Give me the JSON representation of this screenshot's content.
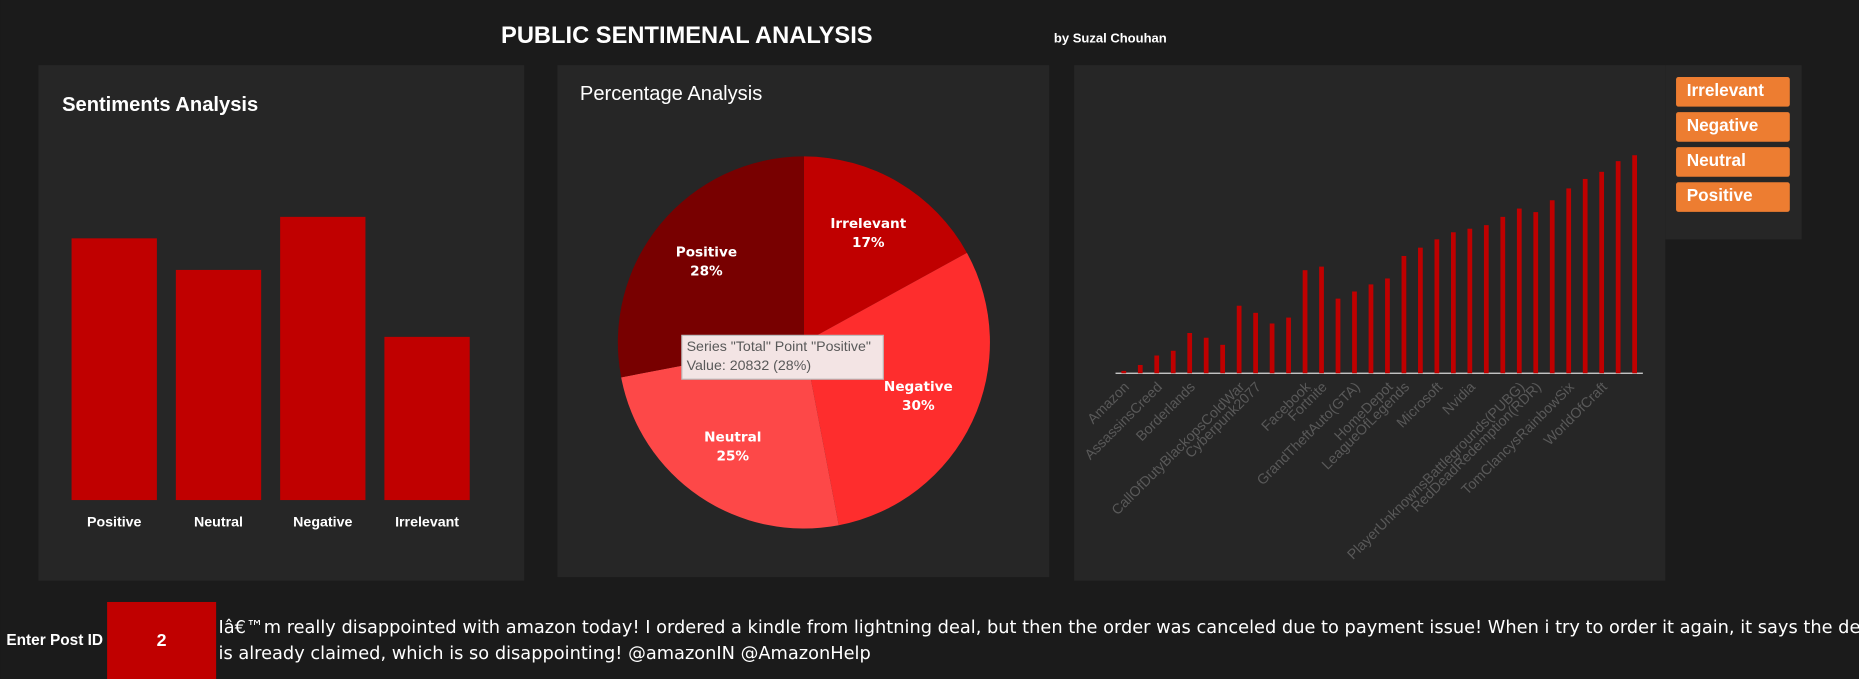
{
  "header": {
    "title": "PUBLIC SENTIMENAL ANALYSIS",
    "subtitle": "by Suzal Chouhan"
  },
  "chart_data": [
    {
      "type": "bar",
      "title": "Sentiments Analysis",
      "categories": [
        "Positive",
        "Neutral",
        "Negative",
        "Irrelevant"
      ],
      "values": [
        20832,
        18318,
        22542,
        12990
      ],
      "color": "#c00000"
    },
    {
      "type": "pie",
      "title": "Percentage Analysis",
      "categories": [
        "Irrelevant",
        "Negative",
        "Neutral",
        "Positive"
      ],
      "values": [
        17,
        30,
        25,
        28
      ],
      "value_labels": [
        "17%",
        "30%",
        "25%",
        "28%"
      ],
      "colors": [
        "#c00000",
        "#fe2d2d",
        "#fd4848",
        "#780000"
      ],
      "tooltip": {
        "lines": [
          "Series \"Total\" Point \"Positive\"",
          "Value: 20832 (28%)"
        ]
      }
    },
    {
      "type": "bar",
      "categories": [
        "Amazon",
        null,
        "AssassinsCreed",
        null,
        "Borderlands",
        null,
        null,
        "CallOfDutyBlackopsColdWar",
        "Cyberpunk2077",
        null,
        null,
        "Facebook",
        "Fortnite",
        null,
        "GrandTheftAuto(GTA)",
        null,
        "HomeDepot",
        "LeagueOfLegends",
        null,
        "Microsoft",
        null,
        "Nvidia",
        null,
        null,
        "PlayerUnknownsBattlegrounds(PUBG)",
        "RedDeadRedemption(RDR)",
        null,
        "TomClancysRainbowSix",
        null,
        "WorldOfCraft",
        null,
        null
      ],
      "values": [
        2,
        7,
        15,
        19,
        34,
        30,
        24,
        57,
        51,
        42,
        47,
        87,
        90,
        63,
        69,
        75,
        80,
        99,
        106,
        113,
        119,
        122,
        125,
        132,
        139,
        136,
        146,
        156,
        164,
        170,
        179,
        184
      ],
      "color": "#c00000"
    }
  ],
  "slicer": {
    "items": [
      "Irrelevant",
      "Negative",
      "Neutral",
      "Positive"
    ]
  },
  "post": {
    "label": "Enter Post ID",
    "id": 2,
    "text": "Iâ€™m really disappointed with amazon today! I ordered a kindle from lightning deal, but then the order was canceled due to payment issue! When i try to order it again, it says the deal is already claimed, which is so disappointing! @amazonIN @AmazonHelp"
  }
}
